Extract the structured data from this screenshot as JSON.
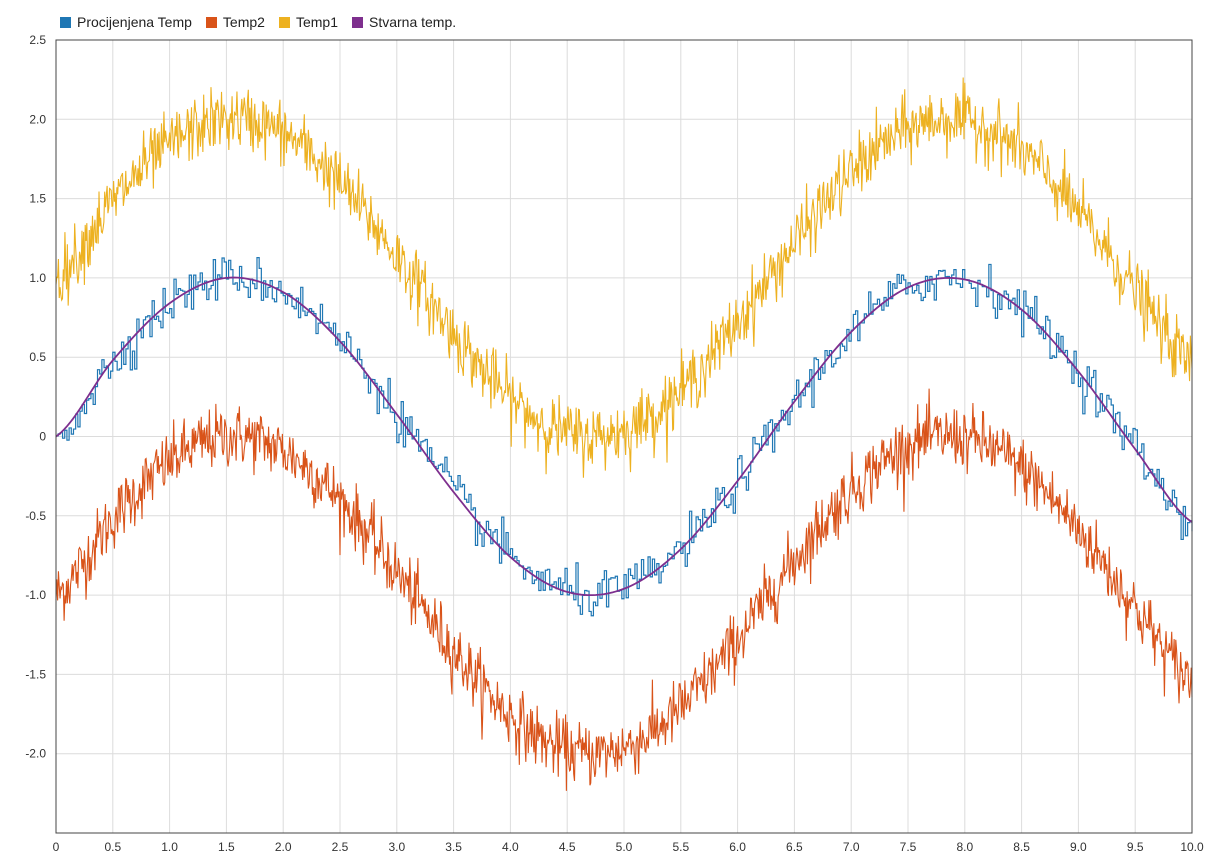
{
  "chart_data": {
    "type": "line",
    "x_range": [
      0,
      10
    ],
    "y_range": [
      -2.5,
      2.5
    ],
    "grid": true,
    "legend_position": "top-left",
    "x_ticks": [
      "0",
      "0.5",
      "1.0",
      "1.5",
      "2.0",
      "2.5",
      "3.0",
      "3.5",
      "4.0",
      "4.5",
      "5.0",
      "5.5",
      "6.0",
      "6.5",
      "7.0",
      "7.5",
      "8.0",
      "8.5",
      "9.0",
      "9.5",
      "10.0"
    ],
    "y_ticks": [
      "2.5",
      "2.0",
      "1.5",
      "1.0",
      "0.5",
      "0",
      "-0.5",
      "-1.0",
      "-1.5",
      "-2.0"
    ],
    "series": [
      {
        "name": "Procijenjena Temp",
        "color": "#1f77b4",
        "style": "step-noisy",
        "x": [
          0,
          0.5,
          1.0,
          1.5,
          2.0,
          2.5,
          3.0,
          3.5,
          4.0,
          4.5,
          5.0,
          5.5,
          6.0,
          6.5,
          7.0,
          7.5,
          8.0,
          8.5,
          9.0,
          9.5,
          10.0
        ],
        "y": [
          0.0,
          0.48,
          0.84,
          1.0,
          0.91,
          0.6,
          0.14,
          -0.35,
          -0.76,
          -0.98,
          -0.96,
          -0.71,
          -0.28,
          0.22,
          0.66,
          0.94,
          0.99,
          0.8,
          0.41,
          -0.08,
          -0.54
        ]
      },
      {
        "name": "Temp2",
        "color": "#d95319",
        "style": "noisy",
        "x": [
          0,
          0.5,
          1.0,
          1.5,
          2.0,
          2.5,
          3.0,
          3.5,
          4.0,
          4.5,
          5.0,
          5.5,
          6.0,
          6.5,
          7.0,
          7.5,
          8.0,
          8.5,
          9.0,
          9.5,
          10.0
        ],
        "y": [
          -1.0,
          -0.52,
          -0.16,
          0.0,
          -0.09,
          -0.4,
          -0.86,
          -1.35,
          -1.76,
          -1.98,
          -1.96,
          -1.71,
          -1.28,
          -0.78,
          -0.34,
          -0.06,
          -0.01,
          -0.2,
          -0.59,
          -1.08,
          -1.54
        ]
      },
      {
        "name": "Temp1",
        "color": "#edb120",
        "style": "noisy",
        "x": [
          0,
          0.5,
          1.0,
          1.5,
          2.0,
          2.5,
          3.0,
          3.5,
          4.0,
          4.5,
          5.0,
          5.5,
          6.0,
          6.5,
          7.0,
          7.5,
          8.0,
          8.5,
          9.0,
          9.5,
          10.0
        ],
        "y": [
          1.0,
          1.48,
          1.84,
          2.0,
          1.91,
          1.6,
          1.14,
          0.65,
          0.24,
          0.02,
          0.04,
          0.29,
          0.72,
          1.22,
          1.66,
          1.94,
          1.99,
          1.8,
          1.41,
          0.92,
          0.46
        ]
      },
      {
        "name": "Stvarna temp.",
        "color": "#7e2f8e",
        "style": "smooth",
        "x": [
          0,
          0.5,
          1.0,
          1.5,
          2.0,
          2.5,
          3.0,
          3.5,
          4.0,
          4.5,
          5.0,
          5.5,
          6.0,
          6.5,
          7.0,
          7.5,
          8.0,
          8.5,
          9.0,
          9.5,
          10.0
        ],
        "y": [
          0.0,
          0.48,
          0.84,
          1.0,
          0.91,
          0.6,
          0.14,
          -0.35,
          -0.76,
          -0.98,
          -0.96,
          -0.71,
          -0.28,
          0.22,
          0.66,
          0.94,
          0.99,
          0.8,
          0.41,
          -0.08,
          -0.54
        ]
      }
    ]
  }
}
